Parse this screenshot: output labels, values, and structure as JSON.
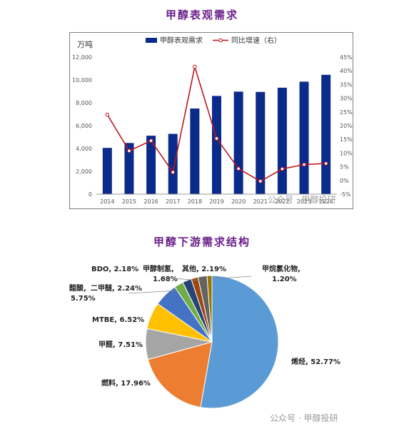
{
  "titles": {
    "top": "甲醇表观需求",
    "bottom": "甲醇下游需求结构"
  },
  "watermark": "公众号 · 甲醇投研",
  "chart_data": [
    {
      "type": "bar",
      "title": "甲醇表观需求",
      "ylabel_left": "万吨",
      "categories": [
        "2014",
        "2015",
        "2016",
        "2017",
        "2018",
        "2019",
        "2020",
        "2021",
        "2022",
        "2023",
        "2024"
      ],
      "series": [
        {
          "name": "甲醇表观需求",
          "kind": "bar",
          "axis": "left",
          "color": "#0b2b8a",
          "values": [
            4050,
            4480,
            5120,
            5280,
            7500,
            8600,
            8980,
            8950,
            9320,
            9850,
            10450
          ]
        },
        {
          "name": "同比增速（右）",
          "kind": "line",
          "axis": "right",
          "color": "#c0151c",
          "values": [
            24,
            10.8,
            14.5,
            3.0,
            41.5,
            15.3,
            4.3,
            -0.3,
            4.2,
            5.8,
            6.2
          ]
        }
      ],
      "ylim_left": [
        0,
        12000
      ],
      "yticks_left": [
        "0",
        "2,000",
        "4,000",
        "6,000",
        "8,000",
        "10,000",
        "12,000"
      ],
      "ylim_right": [
        -5,
        45
      ],
      "yticks_right": [
        "-5%",
        "0%",
        "5%",
        "10%",
        "15%",
        "20%",
        "25%",
        "30%",
        "35%",
        "40%",
        "45%"
      ],
      "legend": "top",
      "grid": false
    },
    {
      "type": "pie",
      "title": "甲醇下游需求结构",
      "slices": [
        {
          "name": "烯烃",
          "value": 52.77,
          "label": "烯烃, 52.77%",
          "color": "#5b9bd5"
        },
        {
          "name": "燃料",
          "value": 17.96,
          "label": "燃料, 17.96%",
          "color": "#ed7d31"
        },
        {
          "name": "甲醛",
          "value": 7.51,
          "label": "甲醛, 7.51%",
          "color": "#a5a5a5"
        },
        {
          "name": "MTBE",
          "value": 6.52,
          "label": "MTBE, 6.52%",
          "color": "#ffc000"
        },
        {
          "name": "醋酸",
          "value": 5.75,
          "label": "醋酸,\n5.75%",
          "color": "#4472c4"
        },
        {
          "name": "二甲醚",
          "value": 2.24,
          "label": "二甲醚, 2.24%",
          "color": "#70ad47"
        },
        {
          "name": "BDO",
          "value": 2.18,
          "label": "BDO, 2.18%",
          "color": "#264478"
        },
        {
          "name": "甲醇制氢",
          "value": 1.68,
          "label": "甲醇制氢,\n1.68%",
          "color": "#9e480e"
        },
        {
          "name": "其他",
          "value": 2.19,
          "label": "其他, 2.19%",
          "color": "#636363"
        },
        {
          "name": "甲烷氯化物",
          "value": 1.2,
          "label": "甲烷氯化物,\n1.20%",
          "color": "#997300"
        }
      ]
    }
  ]
}
